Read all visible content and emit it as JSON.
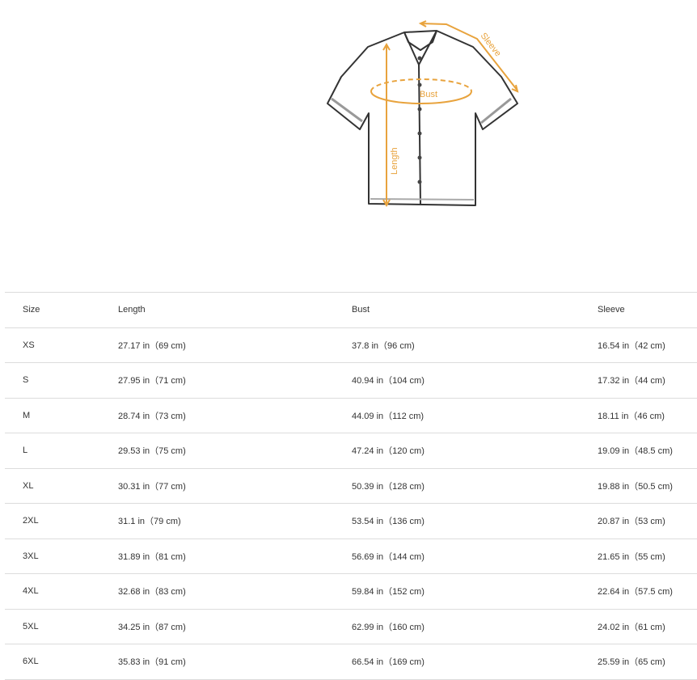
{
  "diagram": {
    "labels": {
      "sleeve": "Sleeve",
      "bust": "Bust",
      "length": "Length"
    },
    "accent_color": "#e8a33d"
  },
  "table": {
    "headers": [
      "Size",
      "Length",
      "Bust",
      "Sleeve"
    ],
    "rows": [
      [
        "XS",
        "27.17 in（69 cm)",
        "37.8 in（96 cm)",
        "16.54 in（42 cm)"
      ],
      [
        "S",
        "27.95 in（71 cm)",
        "40.94 in（104 cm)",
        "17.32 in（44 cm)"
      ],
      [
        "M",
        "28.74 in（73 cm)",
        "44.09 in（112 cm)",
        "18.11 in（46 cm)"
      ],
      [
        "L",
        "29.53 in（75 cm)",
        "47.24 in（120 cm)",
        "19.09 in（48.5 cm)"
      ],
      [
        "XL",
        "30.31 in（77 cm)",
        "50.39 in（128 cm)",
        "19.88 in（50.5 cm)"
      ],
      [
        "2XL",
        "31.1 in（79 cm)",
        "53.54 in（136 cm)",
        "20.87 in（53 cm)"
      ],
      [
        "3XL",
        "31.89 in（81 cm)",
        "56.69 in（144 cm)",
        "21.65 in（55 cm)"
      ],
      [
        "4XL",
        "32.68 in（83 cm)",
        "59.84 in（152 cm)",
        "22.64 in（57.5 cm)"
      ],
      [
        "5XL",
        "34.25 in（87 cm)",
        "62.99 in（160 cm)",
        "24.02 in（61 cm)"
      ],
      [
        "6XL",
        "35.83 in（91 cm)",
        "66.54 in（169 cm)",
        "25.59 in（65 cm)"
      ]
    ]
  }
}
